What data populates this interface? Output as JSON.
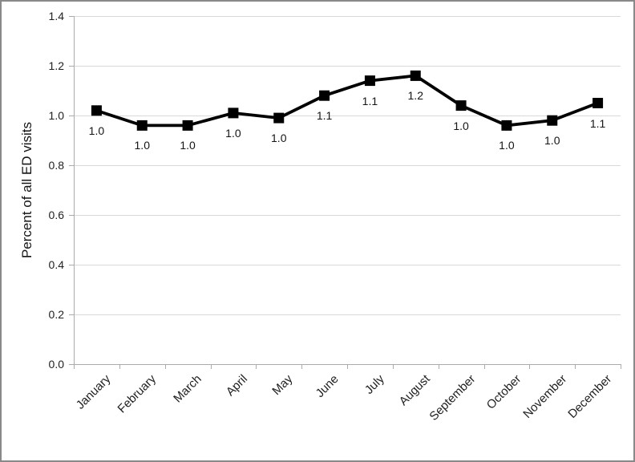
{
  "chart_data": {
    "type": "line",
    "title": "",
    "xlabel": "",
    "ylabel": "Percent of all ED visits",
    "categories": [
      "January",
      "February",
      "March",
      "April",
      "May",
      "June",
      "July",
      "August",
      "September",
      "October",
      "November",
      "December"
    ],
    "series": [
      {
        "name": "Percent of all ED visits",
        "values": [
          1.02,
          0.96,
          0.96,
          1.01,
          0.99,
          1.08,
          1.14,
          1.16,
          1.04,
          0.96,
          0.98,
          1.05
        ],
        "point_labels": [
          "1.0",
          "1.0",
          "1.0",
          "1.0",
          "1.0",
          "1.1",
          "1.1",
          "1.2",
          "1.0",
          "1.0",
          "1.0",
          "1.1"
        ]
      }
    ],
    "ylim": [
      0.0,
      1.4
    ],
    "ytick_step": 0.2,
    "ytick_labels": [
      "0.0",
      "0.2",
      "0.4",
      "0.6",
      "0.8",
      "1.0",
      "1.2",
      "1.4"
    ],
    "grid": true,
    "legend": "none",
    "marker": "square",
    "colors": {
      "line": "#000000",
      "marker": "#000000",
      "gridline": "#d9d9d9",
      "axis": "#ababab",
      "text": "#1f1f1f",
      "frame_border": "#898989",
      "background": "#ffffff"
    }
  }
}
